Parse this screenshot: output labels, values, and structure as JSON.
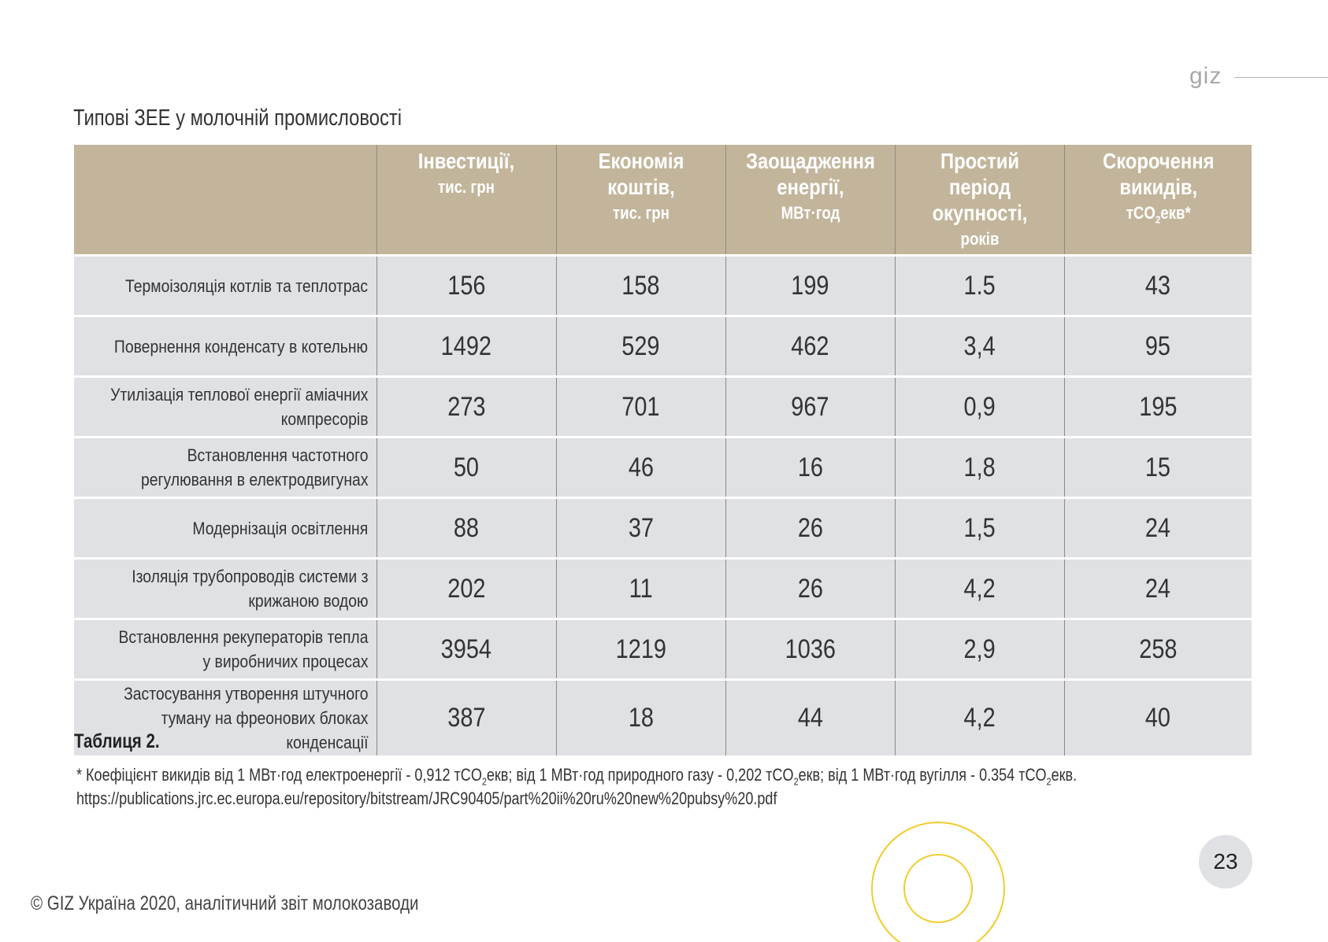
{
  "logo": "giz",
  "title": "Типові ЗЕЕ у молочній промисловості",
  "table": {
    "headers": [
      {
        "main": "",
        "unit": ""
      },
      {
        "main": "Інвестиції,",
        "unit": "тис. грн"
      },
      {
        "main": "Економія коштів,",
        "unit": "тис. грн"
      },
      {
        "main": "Заощадження енергії,",
        "unit": "МВт·год"
      },
      {
        "main": "Простий період окупності,",
        "unit": "років"
      },
      {
        "main": "Скорочення викидів,",
        "unit": "тCO2екв*"
      }
    ],
    "rows": [
      {
        "measure": "Термоізоляція котлів та теплотрас",
        "values": [
          "156",
          "158",
          "199",
          "1.5",
          "43"
        ]
      },
      {
        "measure": "Повернення конденсату в котельню",
        "values": [
          "1492",
          "529",
          "462",
          "3,4",
          "95"
        ]
      },
      {
        "measure": "Утилізація теплової енергії аміачних компресорів",
        "values": [
          "273",
          "701",
          "967",
          "0,9",
          "195"
        ]
      },
      {
        "measure": "Встановлення частотного регулювання в електродвигунах",
        "values": [
          "50",
          "46",
          "16",
          "1,8",
          "15"
        ]
      },
      {
        "measure": "Модернізація освітлення",
        "values": [
          "88",
          "37",
          "26",
          "1,5",
          "24"
        ]
      },
      {
        "measure": "Ізоляція трубопроводів системи з крижаною водою",
        "values": [
          "202",
          "11",
          "26",
          "4,2",
          "24"
        ]
      },
      {
        "measure": "Встановлення рекуператорів тепла у виробничих процесах",
        "values": [
          "3954",
          "1219",
          "1036",
          "2,9",
          "258"
        ]
      },
      {
        "measure": "Застосування утворення штучного туману на фреонових блоках конденсації",
        "values": [
          "387",
          "18",
          "44",
          "4,2",
          "40"
        ]
      }
    ]
  },
  "caption": "Таблиця 2.",
  "footnote": "* Коефіцієнт викидів від 1 МВт·год електроенергії - 0,912  тCO2екв; від 1 МВт·год природного газу -  0,202 тCO2екв;  від 1 МВт·год вугілля - 0.354  тCO2екв.",
  "source_url": "https://publications.jrc.ec.europa.eu/repository/bitstream/JRC90405/part%20ii%20ru%20new%20pubsy%20.pdf",
  "copyright": "© GIZ Україна 2020, аналітичний звіт молокозаводи",
  "page_number": "23",
  "colors": {
    "header": "#c2b59b",
    "row": "#dfe1e4",
    "ring": "#f2cc2e"
  }
}
